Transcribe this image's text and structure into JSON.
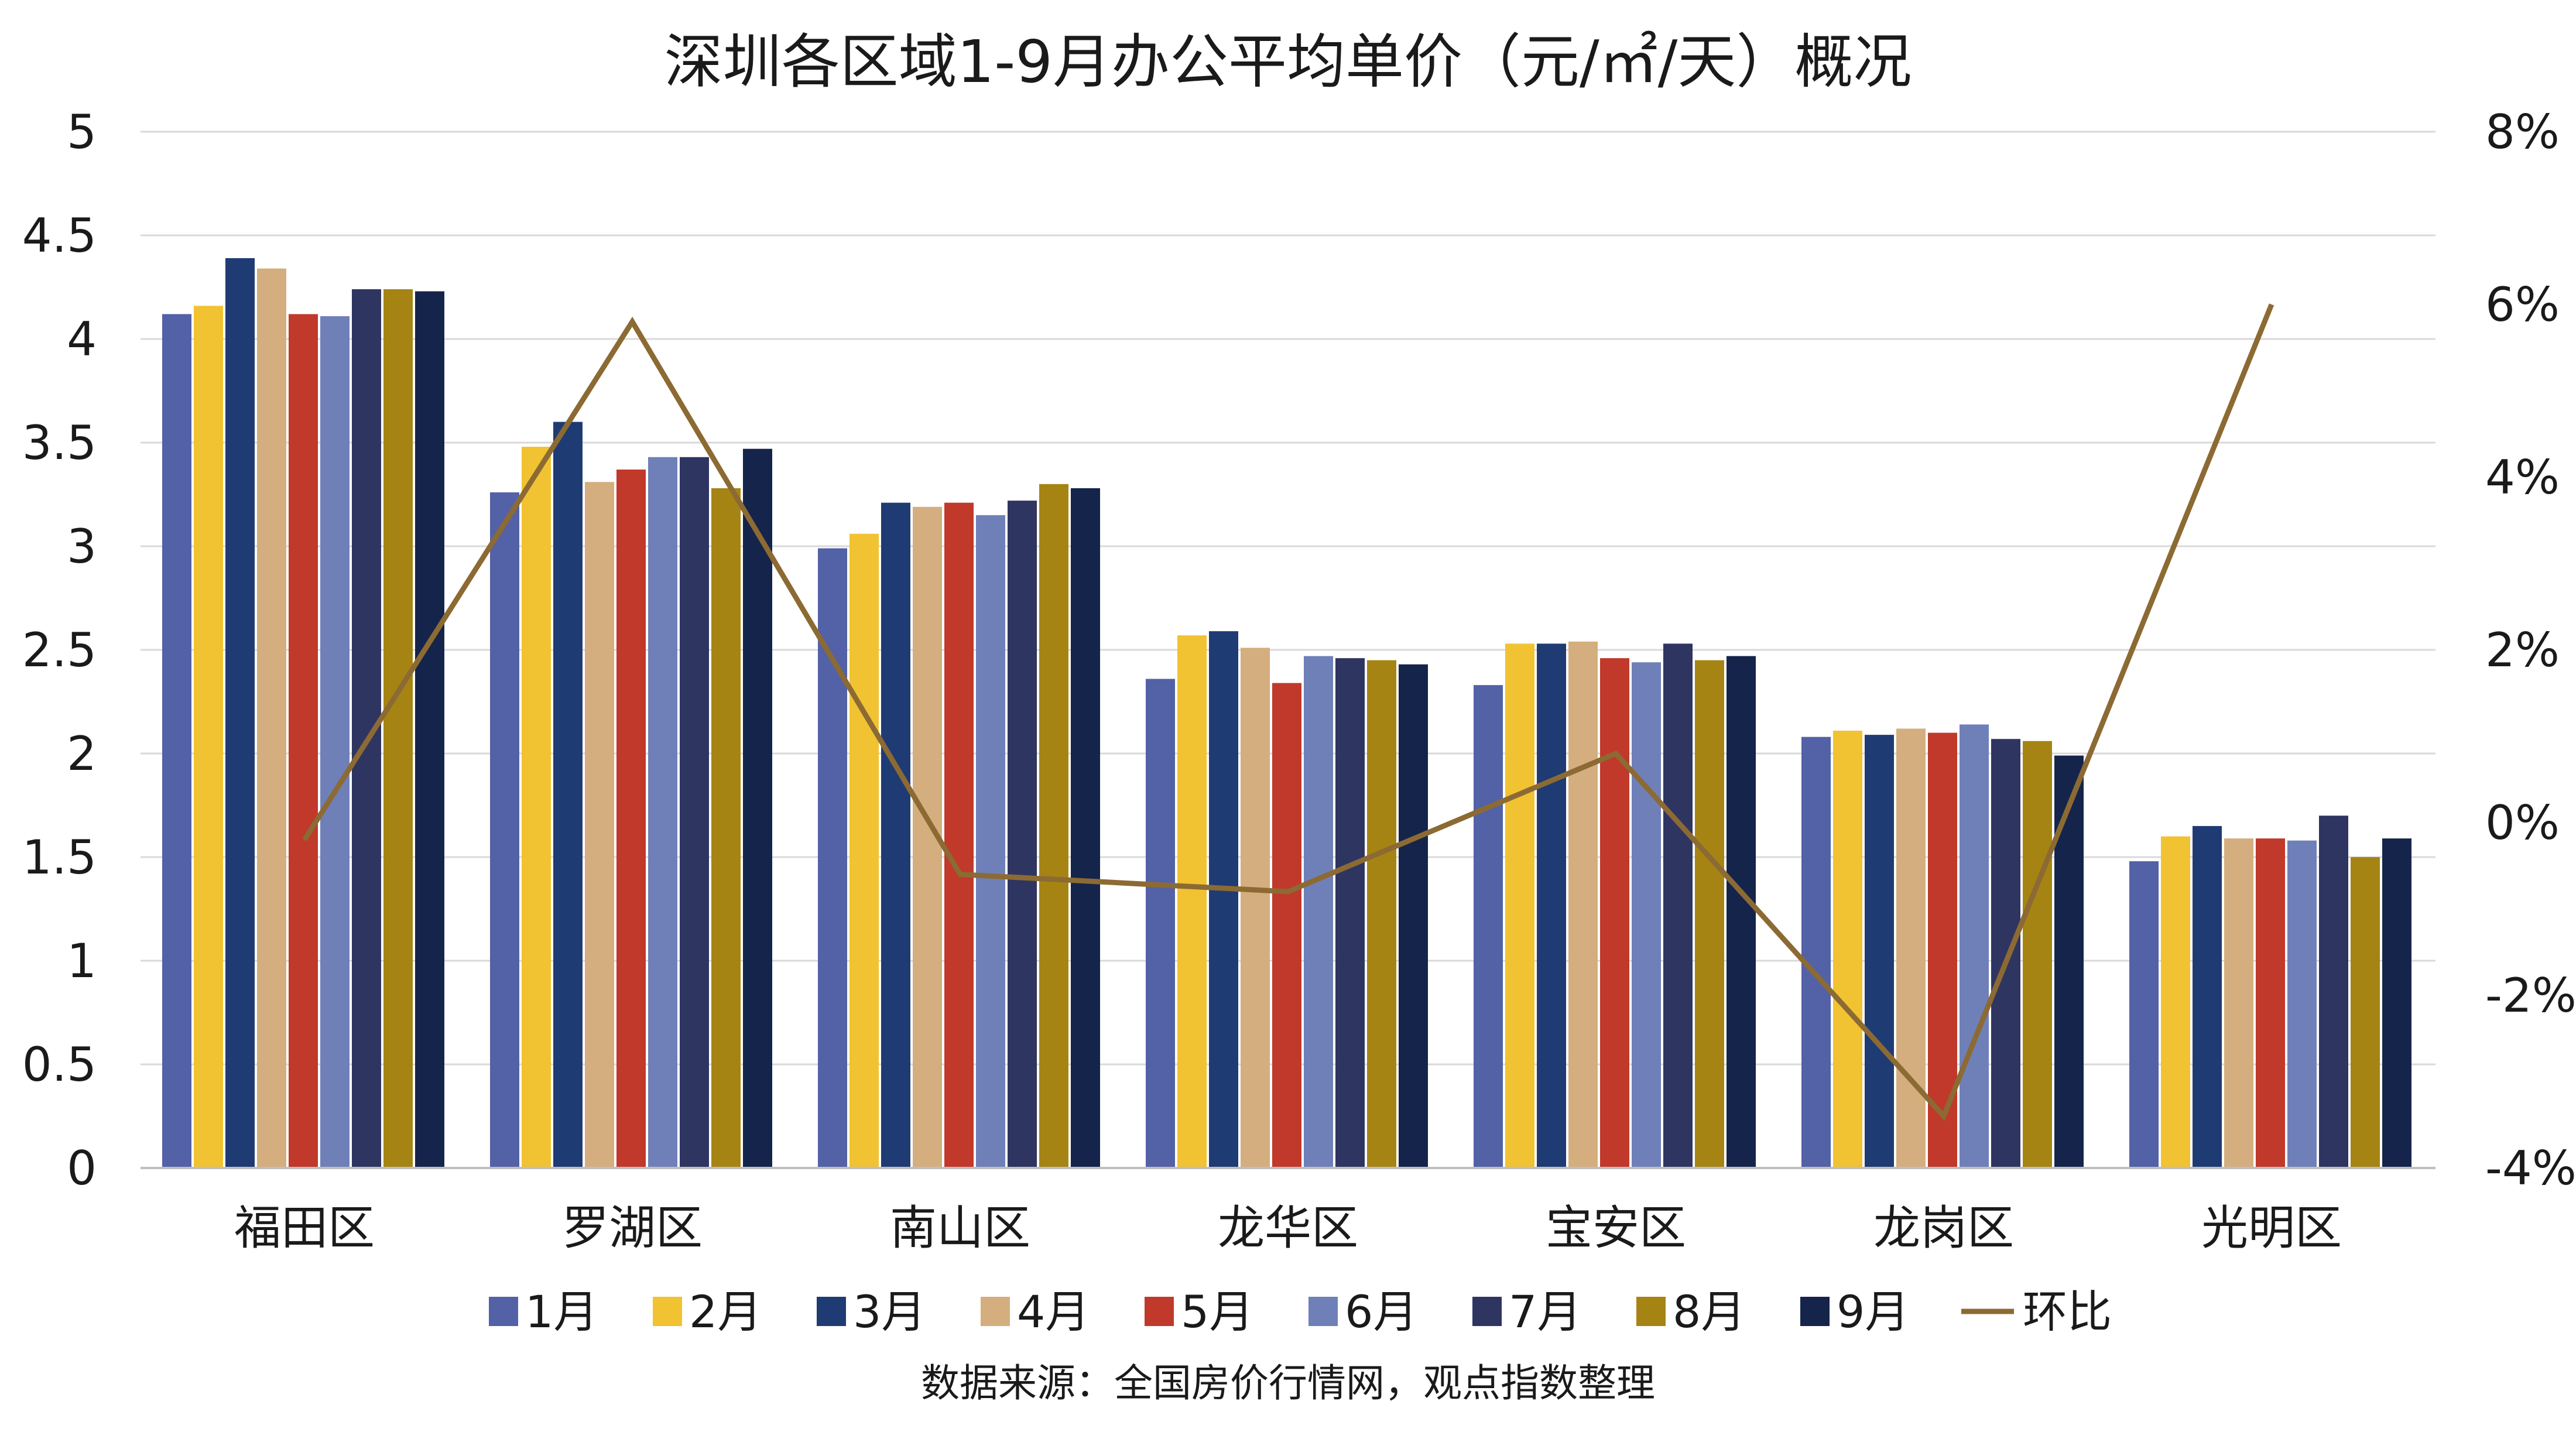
{
  "chart_data": {
    "type": "bar",
    "title": "深圳各区域1-9月办公平均单价（元/㎡/天）概况",
    "source": "数据来源：全国房价行情网，观点指数整理",
    "categories": [
      "福田区",
      "罗湖区",
      "南山区",
      "龙华区",
      "宝安区",
      "龙岗区",
      "光明区"
    ],
    "y_left": {
      "ylim": [
        0,
        5
      ],
      "ticks": [
        0,
        0.5,
        1,
        1.5,
        2,
        2.5,
        3,
        3.5,
        4,
        4.5,
        5
      ],
      "tick_labels": [
        "0",
        "0.5",
        "1",
        "1.5",
        "2",
        "2.5",
        "3",
        "3.5",
        "4",
        "4.5",
        "5"
      ]
    },
    "y_right": {
      "ylim": [
        -4,
        8
      ],
      "ticks": [
        -4,
        -2,
        0,
        2,
        4,
        6,
        8
      ],
      "tick_labels": [
        "-4%",
        "-2%",
        "0%",
        "2%",
        "4%",
        "6%",
        "8%"
      ]
    },
    "grid": true,
    "legend_placement": "bottom",
    "series": [
      {
        "name": "1月",
        "color": "#5361A6",
        "values": [
          4.12,
          3.26,
          2.99,
          2.36,
          2.33,
          2.08,
          1.48
        ]
      },
      {
        "name": "2月",
        "color": "#F1C232",
        "values": [
          4.16,
          3.48,
          3.06,
          2.57,
          2.53,
          2.11,
          1.6
        ]
      },
      {
        "name": "3月",
        "color": "#1F3B73",
        "values": [
          4.39,
          3.6,
          3.21,
          2.59,
          2.53,
          2.09,
          1.65
        ]
      },
      {
        "name": "4月",
        "color": "#D4AE7E",
        "values": [
          4.34,
          3.31,
          3.19,
          2.51,
          2.54,
          2.12,
          1.59
        ]
      },
      {
        "name": "5月",
        "color": "#C0392B",
        "values": [
          4.12,
          3.37,
          3.21,
          2.34,
          2.46,
          2.1,
          1.59
        ]
      },
      {
        "name": "6月",
        "color": "#6F80B8",
        "values": [
          4.11,
          3.43,
          3.15,
          2.47,
          2.44,
          2.14,
          1.58
        ]
      },
      {
        "name": "7月",
        "color": "#2F3561",
        "values": [
          4.24,
          3.43,
          3.22,
          2.46,
          2.53,
          2.07,
          1.7
        ]
      },
      {
        "name": "8月",
        "color": "#A68414",
        "values": [
          4.24,
          3.28,
          3.3,
          2.45,
          2.45,
          2.06,
          1.5
        ]
      },
      {
        "name": "9月",
        "color": "#15244A",
        "values": [
          4.23,
          3.47,
          3.28,
          2.43,
          2.47,
          1.99,
          1.59
        ]
      }
    ],
    "line_series": {
      "name": "环比",
      "color": "#8C6A33",
      "axis": "right",
      "values": [
        -0.2,
        5.8,
        -0.6,
        -0.8,
        0.8,
        -3.4,
        6.0
      ]
    }
  }
}
